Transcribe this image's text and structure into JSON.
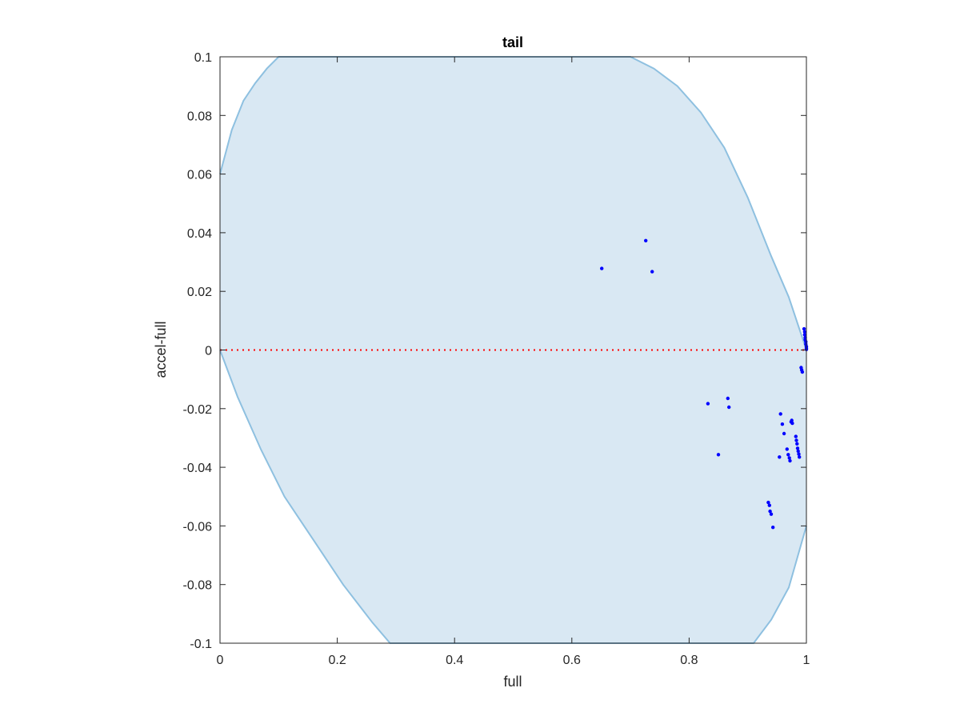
{
  "chart_data": {
    "type": "scatter",
    "title": "tail",
    "xlabel": "full",
    "ylabel": "accel-full",
    "xlim": [
      0,
      1
    ],
    "ylim": [
      -0.1,
      0.1
    ],
    "x_ticks": [
      0,
      0.2,
      0.4,
      0.6,
      0.8,
      1
    ],
    "x_tick_labels": [
      "0",
      "0.2",
      "0.4",
      "0.6",
      "0.8",
      "1"
    ],
    "y_ticks": [
      -0.1,
      -0.08,
      -0.06,
      -0.04,
      -0.02,
      0,
      0.02,
      0.04,
      0.06,
      0.08,
      0.1
    ],
    "y_tick_labels": [
      "-0.1",
      "-0.08",
      "-0.06",
      "-0.04",
      "-0.02",
      "0",
      "0.02",
      "0.04",
      "0.06",
      "0.08",
      "0.1"
    ],
    "grid": false,
    "region": {
      "fill_color": "#d9e8f3",
      "edge_color": "#8ec0e0",
      "upper_boundary": [
        [
          0,
          0.06
        ],
        [
          0.02,
          0.075
        ],
        [
          0.04,
          0.085
        ],
        [
          0.06,
          0.091
        ],
        [
          0.08,
          0.096
        ],
        [
          0.1,
          0.1
        ],
        [
          0.7,
          0.1
        ],
        [
          0.74,
          0.096
        ],
        [
          0.78,
          0.09
        ],
        [
          0.82,
          0.081
        ],
        [
          0.86,
          0.069
        ],
        [
          0.9,
          0.052
        ],
        [
          0.94,
          0.032
        ],
        [
          0.97,
          0.018
        ],
        [
          1.0,
          0.0
        ]
      ],
      "lower_boundary": [
        [
          0,
          0.0
        ],
        [
          0.03,
          -0.016
        ],
        [
          0.07,
          -0.034
        ],
        [
          0.11,
          -0.05
        ],
        [
          0.16,
          -0.065
        ],
        [
          0.21,
          -0.08
        ],
        [
          0.26,
          -0.093
        ],
        [
          0.29,
          -0.1
        ],
        [
          0.91,
          -0.1
        ],
        [
          0.94,
          -0.092
        ],
        [
          0.97,
          -0.081
        ],
        [
          1.0,
          -0.06
        ]
      ]
    },
    "reference_line": {
      "y": 0,
      "color": "#ff0000",
      "style": "dotted"
    },
    "series": [
      {
        "color": "#0000ff",
        "points": [
          [
            0.651,
            0.0278
          ],
          [
            0.726,
            0.0373
          ],
          [
            0.737,
            0.0267
          ],
          [
            0.832,
            -0.0183
          ],
          [
            0.85,
            -0.0357
          ],
          [
            0.866,
            -0.0165
          ],
          [
            0.868,
            -0.0195
          ],
          [
            0.954,
            -0.0365
          ],
          [
            0.956,
            -0.0218
          ],
          [
            0.959,
            -0.0253
          ],
          [
            0.962,
            -0.0285
          ],
          [
            0.967,
            -0.0338
          ],
          [
            0.969,
            -0.0357
          ],
          [
            0.971,
            -0.0368
          ],
          [
            0.972,
            -0.0378
          ],
          [
            0.974,
            -0.0245
          ],
          [
            0.975,
            -0.024
          ],
          [
            0.976,
            -0.025
          ],
          [
            0.982,
            -0.0295
          ],
          [
            0.983,
            -0.0308
          ],
          [
            0.984,
            -0.032
          ],
          [
            0.985,
            -0.0335
          ],
          [
            0.986,
            -0.0345
          ],
          [
            0.987,
            -0.0355
          ],
          [
            0.988,
            -0.0365
          ],
          [
            0.935,
            -0.052
          ],
          [
            0.937,
            -0.053
          ],
          [
            0.938,
            -0.055
          ],
          [
            0.94,
            -0.056
          ],
          [
            0.943,
            -0.0605
          ],
          [
            0.991,
            -0.006
          ],
          [
            0.992,
            -0.0068
          ],
          [
            0.993,
            -0.0075
          ],
          [
            0.996,
            0.0072
          ],
          [
            0.997,
            0.0062
          ],
          [
            0.997,
            0.0052
          ],
          [
            0.998,
            0.0042
          ],
          [
            0.998,
            0.0035
          ],
          [
            0.999,
            0.0028
          ],
          [
            0.999,
            0.002
          ],
          [
            1.0,
            0.0012
          ],
          [
            1.0,
            0.0006
          ],
          [
            1.0,
            0.0002
          ]
        ]
      }
    ]
  }
}
